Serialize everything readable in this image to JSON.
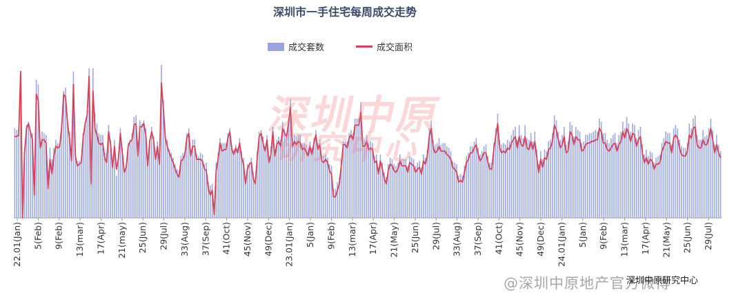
{
  "chart_data": {
    "type": "bar",
    "title": "深圳市一手住宅每周成交走势",
    "colors": {
      "bar": "#9aa6e0",
      "line": "#d94055"
    },
    "ylim": [
      0,
      100
    ],
    "x_tick_labels": [
      "22.01(Jan)",
      "5(Feb)",
      "9(Feb)",
      "13(mar)",
      "17(Apr)",
      "21(may)",
      "25(Jun)",
      "29(Jul)",
      "33(Aug)",
      "37(Sep)",
      "41(Oct)",
      "45(Nov)",
      "49(Dec)",
      "23.01(Jan)",
      "5(Jan)",
      "9(Feb)",
      "13(mar)",
      "17(Apr)",
      "21(May)",
      "25(Jun)",
      "29(Jul)",
      "33(Aug)",
      "37(Sep)",
      "41(Oct)",
      "45(Nov)",
      "49(Dec)",
      "24.01(Jan)",
      "5(Jan)",
      "9(Feb)",
      "13(mar)",
      "17(Apr)",
      "21(May)",
      "25(Jun)",
      "29(Jul)"
    ],
    "series": [
      {
        "name": "成交套数",
        "type": "bar",
        "values": [
          55,
          54,
          55,
          88,
          3,
          38,
          57,
          59,
          53,
          52,
          23,
          85,
          82,
          44,
          53,
          52,
          51,
          29,
          43,
          36,
          43,
          48,
          46,
          46,
          59,
          78,
          80,
          58,
          53,
          35,
          90,
          42,
          35,
          35,
          36,
          52,
          59,
          64,
          92,
          31,
          92,
          65,
          58,
          52,
          51,
          51,
          40,
          40,
          57,
          48,
          34,
          48,
          26,
          37,
          55,
          43,
          31,
          33,
          46,
          48,
          52,
          62,
          63,
          47,
          60,
          58,
          60,
          55,
          34,
          48,
          56,
          50,
          39,
          47,
          36,
          94,
          72,
          51,
          48,
          42,
          40,
          37,
          33,
          30,
          29,
          38,
          40,
          41,
          52,
          55,
          42,
          48,
          48,
          39,
          38,
          40,
          39,
          33,
          34,
          22,
          20,
          21,
          8,
          34,
          40,
          49,
          46,
          46,
          46,
          52,
          55,
          45,
          42,
          45,
          43,
          49,
          41,
          37,
          24,
          33,
          34,
          37,
          28,
          25,
          41,
          53,
          54,
          50,
          44,
          51,
          38,
          44,
          56,
          41,
          48,
          50,
          48,
          59,
          55,
          52,
          61,
          73,
          49,
          51,
          50,
          51,
          51,
          46,
          46,
          45,
          43,
          47,
          43,
          49,
          54,
          46,
          48,
          38,
          38,
          39,
          37,
          33,
          32,
          18,
          18,
          22,
          25,
          36,
          47,
          47,
          47,
          52,
          54,
          52,
          61,
          61,
          61,
          71,
          48,
          48,
          51,
          46,
          47,
          46,
          38,
          39,
          31,
          39,
          34,
          28,
          25,
          33,
          37,
          36,
          33,
          32,
          34,
          39,
          36,
          36,
          36,
          32,
          38,
          37,
          36,
          32,
          34,
          35,
          31,
          39,
          37,
          42,
          55,
          60,
          48,
          45,
          46,
          49,
          45,
          46,
          46,
          44,
          43,
          41,
          35,
          34,
          33,
          26,
          27,
          26,
          32,
          38,
          40,
          44,
          44,
          47,
          49,
          43,
          39,
          41,
          44,
          45,
          38,
          34,
          34,
          46,
          55,
          64,
          48,
          45,
          46,
          45,
          48,
          47,
          51,
          54,
          56,
          48,
          57,
          51,
          49,
          57,
          49,
          48,
          52,
          47,
          53,
          42,
          33,
          41,
          36,
          42,
          41,
          47,
          48,
          52,
          63,
          60,
          53,
          48,
          51,
          56,
          45,
          47,
          59,
          57,
          50,
          56,
          54,
          53,
          46,
          47,
          51,
          51,
          52,
          52,
          53,
          54,
          53,
          61,
          59,
          52,
          52,
          48,
          46,
          49,
          51,
          52,
          46,
          51,
          53,
          59,
          55,
          62,
          58,
          53,
          58,
          57,
          49,
          54,
          56,
          45,
          39,
          42,
          38,
          41,
          40,
          34,
          37,
          38,
          39,
          46,
          49,
          53,
          52,
          52,
          45,
          55,
          57,
          55,
          48,
          44,
          43,
          43,
          46,
          58,
          55,
          61,
          63,
          51,
          48,
          48,
          54,
          50,
          51,
          55,
          61,
          54,
          45,
          51,
          45,
          41
        ]
      },
      {
        "name": "成交面积",
        "type": "line",
        "values": [
          50,
          50,
          51,
          90,
          0,
          40,
          55,
          58,
          53,
          48,
          14,
          76,
          72,
          43,
          48,
          48,
          46,
          18,
          36,
          27,
          38,
          44,
          43,
          44,
          56,
          76,
          74,
          58,
          49,
          35,
          82,
          38,
          32,
          33,
          34,
          50,
          58,
          63,
          87,
          21,
          78,
          55,
          51,
          46,
          45,
          46,
          37,
          34,
          53,
          45,
          31,
          44,
          30,
          36,
          52,
          40,
          28,
          31,
          44,
          47,
          48,
          57,
          58,
          38,
          56,
          56,
          58,
          51,
          32,
          47,
          53,
          48,
          36,
          44,
          33,
          83,
          67,
          49,
          44,
          40,
          37,
          34,
          30,
          27,
          25,
          35,
          36,
          39,
          49,
          52,
          38,
          44,
          44,
          36,
          36,
          36,
          35,
          30,
          29,
          18,
          14,
          17,
          2,
          29,
          36,
          46,
          41,
          42,
          42,
          49,
          53,
          42,
          39,
          43,
          40,
          46,
          37,
          33,
          21,
          30,
          33,
          34,
          24,
          21,
          37,
          50,
          52,
          46,
          41,
          48,
          34,
          39,
          53,
          38,
          45,
          47,
          44,
          55,
          52,
          50,
          58,
          68,
          44,
          47,
          45,
          47,
          46,
          42,
          43,
          41,
          38,
          44,
          39,
          46,
          51,
          42,
          45,
          35,
          34,
          36,
          34,
          29,
          27,
          13,
          13,
          17,
          21,
          32,
          45,
          45,
          43,
          49,
          51,
          48,
          57,
          57,
          57,
          65,
          44,
          44,
          47,
          42,
          43,
          42,
          34,
          35,
          27,
          35,
          30,
          24,
          21,
          29,
          33,
          32,
          29,
          28,
          30,
          35,
          32,
          32,
          32,
          28,
          34,
          33,
          32,
          28,
          30,
          31,
          27,
          35,
          33,
          38,
          50,
          55,
          43,
          40,
          41,
          44,
          41,
          41,
          41,
          39,
          38,
          36,
          31,
          30,
          28,
          22,
          23,
          22,
          28,
          34,
          36,
          40,
          40,
          43,
          45,
          39,
          35,
          37,
          40,
          40,
          34,
          30,
          30,
          42,
          50,
          58,
          43,
          40,
          41,
          40,
          43,
          42,
          46,
          48,
          50,
          43,
          50,
          45,
          44,
          50,
          43,
          42,
          47,
          42,
          47,
          37,
          28,
          36,
          31,
          37,
          36,
          42,
          43,
          47,
          57,
          54,
          48,
          43,
          45,
          50,
          40,
          41,
          53,
          51,
          45,
          50,
          48,
          48,
          41,
          42,
          45,
          46,
          46,
          47,
          47,
          48,
          48,
          55,
          53,
          46,
          46,
          42,
          41,
          43,
          45,
          46,
          41,
          45,
          47,
          53,
          49,
          55,
          52,
          47,
          52,
          51,
          44,
          48,
          50,
          40,
          34,
          37,
          33,
          36,
          35,
          30,
          33,
          33,
          34,
          41,
          44,
          47,
          46,
          46,
          40,
          49,
          51,
          49,
          43,
          39,
          38,
          38,
          41,
          51,
          49,
          55,
          56,
          45,
          43,
          43,
          48,
          45,
          45,
          49,
          55,
          48,
          40,
          45,
          40,
          37
        ]
      }
    ]
  },
  "source_label": "深圳中原研究中心",
  "weibo_label": "@深圳中原地产官方微博"
}
